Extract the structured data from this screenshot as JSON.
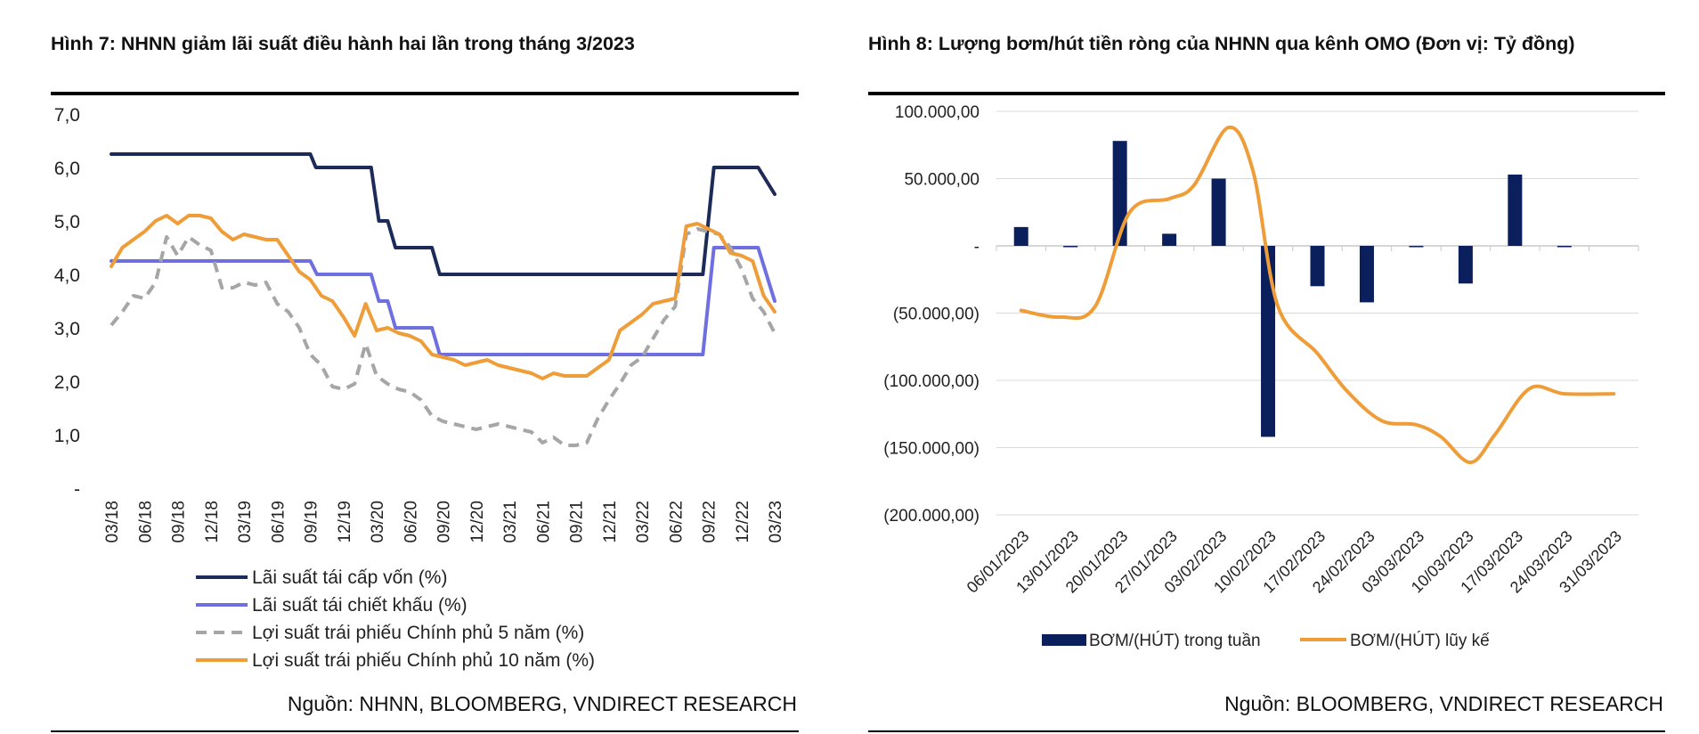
{
  "colors": {
    "navy": "#1c2b57",
    "purple": "#6f6fe0",
    "gray": "#a6a6a6",
    "orange": "#ef9d38",
    "bar_navy": "#0b1f5c",
    "grid": "#d9d9d9",
    "rule": "#000000"
  },
  "left_panel": {
    "title": "Hình 7: NHNN giảm lãi suất điều hành hai lần trong tháng 3/2023",
    "source": "Nguồn: NHNN, BLOOMBERG, VNDIRECT RESEARCH"
  },
  "right_panel": {
    "title": "Hình 8: Lượng bơm/hút tiền ròng của NHNN qua kênh OMO (Đơn vị: Tỷ đồng)",
    "source": "Nguồn: BLOOMBERG, VNDIRECT RESEARCH"
  },
  "chart_data": [
    {
      "type": "line",
      "title": "Hình 7: NHNN giảm lãi suất điều hành hai lần trong tháng 3/2023",
      "ylim": [
        0,
        7
      ],
      "y_ticks": [
        {
          "value": 0,
          "label": "-"
        },
        {
          "value": 1,
          "label": "1,0"
        },
        {
          "value": 2,
          "label": "2,0"
        },
        {
          "value": 3,
          "label": "3,0"
        },
        {
          "value": 4,
          "label": "4,0"
        },
        {
          "value": 5,
          "label": "5,0"
        },
        {
          "value": 6,
          "label": "6,0"
        },
        {
          "value": 7,
          "label": "7,0"
        }
      ],
      "x_range": [
        0,
        60
      ],
      "x_ticks": [
        {
          "index": 0,
          "label": "03/18"
        },
        {
          "index": 3,
          "label": "06/18"
        },
        {
          "index": 6,
          "label": "09/18"
        },
        {
          "index": 9,
          "label": "12/18"
        },
        {
          "index": 12,
          "label": "03/19"
        },
        {
          "index": 15,
          "label": "06/19"
        },
        {
          "index": 18,
          "label": "09/19"
        },
        {
          "index": 21,
          "label": "12/19"
        },
        {
          "index": 24,
          "label": "03/20"
        },
        {
          "index": 27,
          "label": "06/20"
        },
        {
          "index": 30,
          "label": "09/20"
        },
        {
          "index": 33,
          "label": "12/20"
        },
        {
          "index": 36,
          "label": "03/21"
        },
        {
          "index": 39,
          "label": "06/21"
        },
        {
          "index": 42,
          "label": "09/21"
        },
        {
          "index": 45,
          "label": "12/21"
        },
        {
          "index": 48,
          "label": "03/22"
        },
        {
          "index": 51,
          "label": "06/22"
        },
        {
          "index": 54,
          "label": "09/22"
        },
        {
          "index": 57,
          "label": "12/22"
        },
        {
          "index": 60,
          "label": "03/23"
        }
      ],
      "legend_position": "bottom",
      "series": [
        {
          "name": "Lãi suất tái cấp vốn (%)",
          "color_key": "navy",
          "dash": "solid",
          "points": [
            [
              0,
              6.25
            ],
            [
              18,
              6.25
            ],
            [
              18.5,
              6.0
            ],
            [
              23.5,
              6.0
            ],
            [
              24.2,
              5.0
            ],
            [
              25,
              5.0
            ],
            [
              25.7,
              4.5
            ],
            [
              29,
              4.5
            ],
            [
              29.7,
              4.0
            ],
            [
              53.5,
              4.0
            ],
            [
              54.5,
              6.0
            ],
            [
              58.5,
              6.0
            ],
            [
              60,
              5.5
            ]
          ]
        },
        {
          "name": "Lãi suất tái chiết khấu (%)",
          "color_key": "purple",
          "dash": "solid",
          "points": [
            [
              0,
              4.25
            ],
            [
              18,
              4.25
            ],
            [
              18.6,
              4.0
            ],
            [
              23.5,
              4.0
            ],
            [
              24.2,
              3.5
            ],
            [
              25,
              3.5
            ],
            [
              25.7,
              3.0
            ],
            [
              29,
              3.0
            ],
            [
              29.7,
              2.5
            ],
            [
              53.5,
              2.5
            ],
            [
              54.5,
              4.5
            ],
            [
              58.5,
              4.5
            ],
            [
              60,
              3.5
            ]
          ]
        },
        {
          "name": "Lợi suất trái phiếu Chính phủ 5 năm (%)",
          "color_key": "gray",
          "dash": "dashed",
          "points": [
            [
              0,
              3.05
            ],
            [
              1,
              3.3
            ],
            [
              2,
              3.6
            ],
            [
              3,
              3.55
            ],
            [
              4,
              3.85
            ],
            [
              5,
              4.7
            ],
            [
              6,
              4.35
            ],
            [
              7,
              4.7
            ],
            [
              8,
              4.55
            ],
            [
              9,
              4.45
            ],
            [
              10,
              3.75
            ],
            [
              11,
              3.75
            ],
            [
              12,
              3.85
            ],
            [
              13,
              3.8
            ],
            [
              14,
              3.85
            ],
            [
              15,
              3.45
            ],
            [
              16,
              3.3
            ],
            [
              17,
              3.0
            ],
            [
              18,
              2.5
            ],
            [
              19,
              2.3
            ],
            [
              20,
              1.9
            ],
            [
              21,
              1.85
            ],
            [
              22,
              1.95
            ],
            [
              23,
              2.7
            ],
            [
              24,
              2.1
            ],
            [
              25,
              1.95
            ],
            [
              26,
              1.85
            ],
            [
              27,
              1.8
            ],
            [
              28,
              1.65
            ],
            [
              29,
              1.35
            ],
            [
              30,
              1.25
            ],
            [
              31,
              1.2
            ],
            [
              32,
              1.15
            ],
            [
              33,
              1.1
            ],
            [
              34,
              1.15
            ],
            [
              35,
              1.2
            ],
            [
              36,
              1.15
            ],
            [
              37,
              1.1
            ],
            [
              38,
              1.05
            ],
            [
              39,
              0.85
            ],
            [
              40,
              0.95
            ],
            [
              41,
              0.8
            ],
            [
              42,
              0.8
            ],
            [
              43,
              0.85
            ],
            [
              44,
              1.3
            ],
            [
              45,
              1.65
            ],
            [
              46,
              1.95
            ],
            [
              47,
              2.3
            ],
            [
              48,
              2.45
            ],
            [
              49,
              2.8
            ],
            [
              50,
              3.15
            ],
            [
              51,
              3.4
            ],
            [
              52,
              4.75
            ],
            [
              53,
              4.85
            ],
            [
              54,
              4.8
            ],
            [
              55,
              4.75
            ],
            [
              56,
              4.5
            ],
            [
              57,
              4.1
            ],
            [
              58,
              3.55
            ],
            [
              59,
              3.3
            ],
            [
              60,
              2.9
            ]
          ]
        },
        {
          "name": "Lợi suất trái phiếu Chính phủ 10 năm (%)",
          "color_key": "orange",
          "dash": "solid",
          "points": [
            [
              0,
              4.15
            ],
            [
              1,
              4.5
            ],
            [
              2,
              4.65
            ],
            [
              3,
              4.8
            ],
            [
              4,
              5.0
            ],
            [
              5,
              5.1
            ],
            [
              6,
              4.95
            ],
            [
              7,
              5.1
            ],
            [
              8,
              5.1
            ],
            [
              9,
              5.05
            ],
            [
              10,
              4.8
            ],
            [
              11,
              4.65
            ],
            [
              12,
              4.75
            ],
            [
              13,
              4.7
            ],
            [
              14,
              4.65
            ],
            [
              15,
              4.65
            ],
            [
              16,
              4.35
            ],
            [
              17,
              4.05
            ],
            [
              18,
              3.9
            ],
            [
              19,
              3.6
            ],
            [
              20,
              3.5
            ],
            [
              21,
              3.2
            ],
            [
              22,
              2.85
            ],
            [
              23,
              3.45
            ],
            [
              24,
              2.95
            ],
            [
              25,
              3.0
            ],
            [
              26,
              2.9
            ],
            [
              27,
              2.85
            ],
            [
              28,
              2.75
            ],
            [
              29,
              2.5
            ],
            [
              30,
              2.45
            ],
            [
              31,
              2.4
            ],
            [
              32,
              2.3
            ],
            [
              33,
              2.35
            ],
            [
              34,
              2.4
            ],
            [
              35,
              2.3
            ],
            [
              36,
              2.25
            ],
            [
              37,
              2.2
            ],
            [
              38,
              2.15
            ],
            [
              39,
              2.05
            ],
            [
              40,
              2.15
            ],
            [
              41,
              2.1
            ],
            [
              42,
              2.1
            ],
            [
              43,
              2.1
            ],
            [
              44,
              2.25
            ],
            [
              45,
              2.4
            ],
            [
              46,
              2.95
            ],
            [
              47,
              3.1
            ],
            [
              48,
              3.25
            ],
            [
              49,
              3.45
            ],
            [
              50,
              3.5
            ],
            [
              51,
              3.55
            ],
            [
              52,
              4.9
            ],
            [
              53,
              4.95
            ],
            [
              54,
              4.85
            ],
            [
              55,
              4.75
            ],
            [
              56,
              4.4
            ],
            [
              57,
              4.35
            ],
            [
              58,
              4.25
            ],
            [
              59,
              3.6
            ],
            [
              60,
              3.3
            ]
          ]
        }
      ]
    },
    {
      "type": "bar",
      "title": "Hình 8: Lượng bơm/hút tiền ròng của NHNN qua kênh OMO (Đơn vị: Tỷ đồng)",
      "ylim": [
        -200000,
        100000
      ],
      "y_ticks": [
        {
          "value": 100000,
          "label": "100.000,00"
        },
        {
          "value": 50000,
          "label": "50.000,00"
        },
        {
          "value": 0,
          "label": "-"
        },
        {
          "value": -50000,
          "label": "(50.000,00)"
        },
        {
          "value": -100000,
          "label": "(100.000,00)"
        },
        {
          "value": -150000,
          "label": "(150.000,00)"
        },
        {
          "value": -200000,
          "label": "(200.000,00)"
        }
      ],
      "categories": [
        "06/01/2023",
        "13/01/2023",
        "20/01/2023",
        "27/01/2023",
        "03/02/2023",
        "10/02/2023",
        "17/02/2023",
        "24/02/2023",
        "03/03/2023",
        "10/03/2023",
        "17/03/2023",
        "24/03/2023",
        "31/03/2023"
      ],
      "bar_series": {
        "name": "BƠM/(HÚT) trong tuần",
        "color_key": "bar_navy",
        "points": [
          [
            0,
            14000
          ],
          [
            1,
            -1000
          ],
          [
            2,
            78000
          ],
          [
            3,
            9000
          ],
          [
            4,
            50000
          ],
          [
            5,
            -142000
          ],
          [
            6,
            -30000
          ],
          [
            7,
            -42000
          ],
          [
            8,
            -1000
          ],
          [
            9,
            -28000
          ],
          [
            10,
            53000
          ],
          [
            11,
            -1000
          ]
        ]
      },
      "line_series": {
        "name": "BƠM/(HÚT) lũy kế",
        "color_key": "orange",
        "points": [
          [
            0,
            -48000
          ],
          [
            0.8,
            -53000
          ],
          [
            1.5,
            -45000
          ],
          [
            2.2,
            25000
          ],
          [
            3,
            35000
          ],
          [
            3.5,
            45000
          ],
          [
            4.2,
            88000
          ],
          [
            4.7,
            55000
          ],
          [
            5.2,
            -45000
          ],
          [
            6,
            -80000
          ],
          [
            6.6,
            -108000
          ],
          [
            7.3,
            -130000
          ],
          [
            8,
            -133000
          ],
          [
            8.5,
            -142000
          ],
          [
            9.1,
            -161000
          ],
          [
            9.6,
            -140000
          ],
          [
            10.3,
            -106000
          ],
          [
            11,
            -110000
          ],
          [
            12,
            -110000
          ]
        ]
      },
      "legend_position": "bottom"
    }
  ]
}
